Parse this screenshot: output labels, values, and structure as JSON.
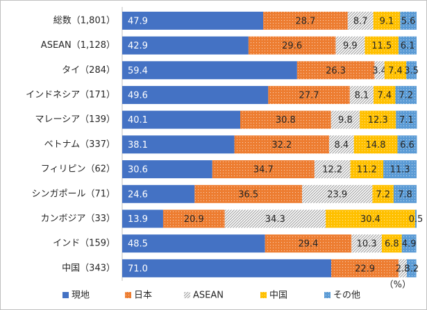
{
  "chart_data": {
    "type": "stacked-bar-horizontal",
    "categories": [
      "総数（1,801）",
      "ASEAN（1,128）",
      "タイ（284）",
      "インドネシア（171）",
      "マレーシア（139）",
      "ベトナム（337）",
      "フィリピン（62）",
      "シンガポール（71）",
      "カンボジア（33）",
      "インド（159）",
      "中国（343）"
    ],
    "series": [
      {
        "name": "現地",
        "color": "#4472c4",
        "pattern": "solid",
        "values": [
          47.9,
          42.9,
          59.4,
          49.6,
          40.1,
          38.1,
          30.6,
          24.6,
          13.9,
          48.5,
          71.0
        ],
        "value_labels": [
          "47.9",
          "42.9",
          "59.4",
          "49.6",
          "40.1",
          "38.1",
          "30.6",
          "24.6",
          "13.9",
          "48.5",
          "71.0"
        ]
      },
      {
        "name": "日本",
        "color": "#ed7d31",
        "pattern": "dots",
        "values": [
          28.7,
          29.6,
          26.3,
          27.7,
          30.8,
          32.2,
          34.7,
          36.5,
          20.9,
          29.4,
          22.9
        ],
        "value_labels": [
          "28.7",
          "29.6",
          "26.3",
          "27.7",
          "30.8",
          "32.2",
          "34.7",
          "36.5",
          "20.9",
          "29.4",
          "22.9"
        ]
      },
      {
        "name": "ASEAN",
        "color": "#a5a5a5",
        "pattern": "hatch",
        "values": [
          8.7,
          9.9,
          3.4,
          8.1,
          9.8,
          8.4,
          12.2,
          23.9,
          34.3,
          10.3,
          2.8
        ],
        "value_labels": [
          "8.7",
          "9.9",
          "3.4",
          "8.1",
          "9.8",
          "8.4",
          "12.2",
          "23.9",
          "34.3",
          "10.3",
          "2.8"
        ]
      },
      {
        "name": "中国",
        "color": "#ffc000",
        "pattern": "dots",
        "values": [
          9.1,
          11.5,
          7.4,
          7.4,
          12.3,
          14.8,
          11.2,
          7.2,
          30.4,
          6.8,
          null
        ],
        "value_labels": [
          "9.1",
          "11.5",
          "7.4",
          "7.4",
          "12.3",
          "14.8",
          "11.2",
          "7.2",
          "30.4",
          "6.8",
          null
        ]
      },
      {
        "name": "その他",
        "color": "#5b9bd5",
        "pattern": "dots",
        "values": [
          5.6,
          6.1,
          3.5,
          7.2,
          7.1,
          6.6,
          11.3,
          7.8,
          0.5,
          4.9,
          3.2
        ],
        "value_labels": [
          "5.6",
          "6.1",
          "3.5",
          "7.2",
          "7.1",
          "6.6",
          "11.3",
          "7.8",
          "0.5",
          "4.9",
          "3.2"
        ]
      }
    ],
    "xlim": [
      0,
      100
    ],
    "unit_label": "（%）",
    "legend": "bottom"
  }
}
